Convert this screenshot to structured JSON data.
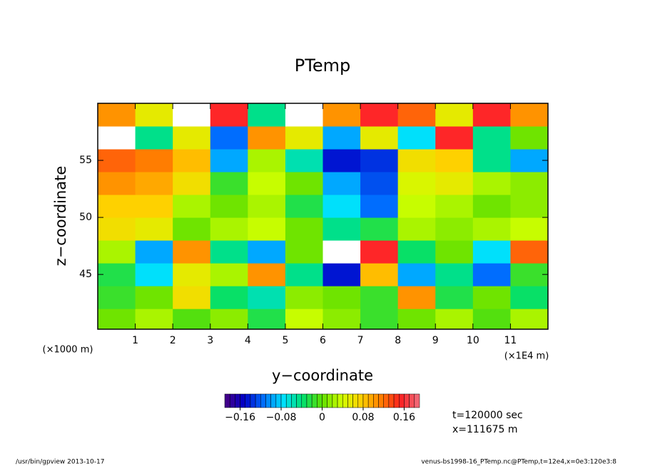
{
  "chart_data": {
    "type": "contour",
    "title": "PTemp",
    "x_label": "y−coordinate",
    "y_label": "z−coordinate",
    "x_unit": "(×1E4 m)",
    "y_unit": "(×1000 m)",
    "annotations": [
      "t=120000 sec",
      "x=111675 m"
    ],
    "footer_left": "/usr/bin/gpview  2013-10-17",
    "footer_right": "venus-bs1998-16_PTemp.nc@PTemp,t=12e4,x=0e3:120e3:8",
    "xlim": [
      0,
      12
    ],
    "ylim": [
      40.2,
      60
    ],
    "xticks": [
      1,
      2,
      3,
      4,
      5,
      6,
      7,
      8,
      9,
      10,
      11
    ],
    "yticks": [
      45,
      50,
      55
    ],
    "x": [
      0.5,
      1.5,
      2.5,
      3.5,
      4.5,
      5.5,
      6.5,
      7.5,
      8.5,
      9.5,
      10.5,
      11.5
    ],
    "y": [
      41,
      43,
      45,
      47,
      49,
      51,
      53,
      55,
      57,
      59
    ],
    "z": [
      [
        0.0,
        0.02,
        -0.01,
        0.01,
        -0.03,
        0.03,
        0.01,
        -0.02,
        0.0,
        0.02,
        -0.01,
        0.02
      ],
      [
        -0.02,
        0.0,
        0.06,
        -0.04,
        -0.06,
        0.01,
        0.0,
        -0.02,
        0.1,
        -0.03,
        0.0,
        -0.04
      ],
      [
        -0.03,
        -0.08,
        0.05,
        0.02,
        0.1,
        -0.05,
        -0.15,
        0.08,
        -0.1,
        -0.05,
        -0.12,
        -0.02
      ],
      [
        0.02,
        -0.1,
        0.1,
        -0.05,
        -0.1,
        0.0,
        0.2,
        0.15,
        -0.04,
        0.0,
        -0.08,
        0.12
      ],
      [
        0.06,
        0.05,
        0.0,
        0.02,
        0.03,
        0.0,
        -0.05,
        -0.03,
        0.02,
        0.01,
        0.02,
        0.03
      ],
      [
        0.07,
        0.07,
        0.02,
        0.0,
        0.02,
        -0.03,
        -0.08,
        -0.12,
        0.03,
        0.02,
        0.0,
        0.01
      ],
      [
        0.1,
        0.09,
        0.06,
        -0.02,
        0.03,
        0.0,
        -0.1,
        -0.13,
        0.04,
        0.05,
        0.02,
        0.01
      ],
      [
        0.12,
        0.11,
        0.08,
        -0.1,
        0.02,
        -0.06,
        -0.15,
        -0.14,
        0.06,
        0.07,
        -0.05,
        -0.1
      ],
      [
        0.2,
        -0.05,
        0.05,
        -0.12,
        0.1,
        0.05,
        -0.1,
        0.05,
        -0.08,
        0.15,
        -0.05,
        0.0
      ],
      [
        0.1,
        0.05,
        0.2,
        0.15,
        -0.05,
        0.2,
        0.1,
        0.15,
        0.12,
        0.05,
        0.15,
        0.1
      ]
    ],
    "levels": [
      -0.19,
      -0.18,
      -0.17,
      -0.16,
      -0.15,
      -0.14,
      -0.13,
      -0.12,
      -0.11,
      -0.1,
      -0.09,
      -0.08,
      -0.07,
      -0.06,
      -0.05,
      -0.04,
      -0.03,
      -0.02,
      -0.01,
      0,
      0.01,
      0.02,
      0.03,
      0.04,
      0.05,
      0.06,
      0.07,
      0.08,
      0.09,
      0.1,
      0.11,
      0.12,
      0.13,
      0.14,
      0.15,
      0.16,
      0.17,
      0.18,
      0.19
    ],
    "colorbar_ticks": [
      {
        "value": -0.16,
        "label": "−0.16"
      },
      {
        "value": -0.08,
        "label": "−0.08"
      },
      0,
      0.08,
      0.16
    ],
    "colormap": [
      "#4b0082",
      "#0000c8",
      "#0070ff",
      "#00e0ff",
      "#00e070",
      "#60e000",
      "#d0ff00",
      "#ffd000",
      "#ff8000",
      "#ff2020",
      "#f07080"
    ],
    "out_of_range_color": "#ffffff"
  }
}
